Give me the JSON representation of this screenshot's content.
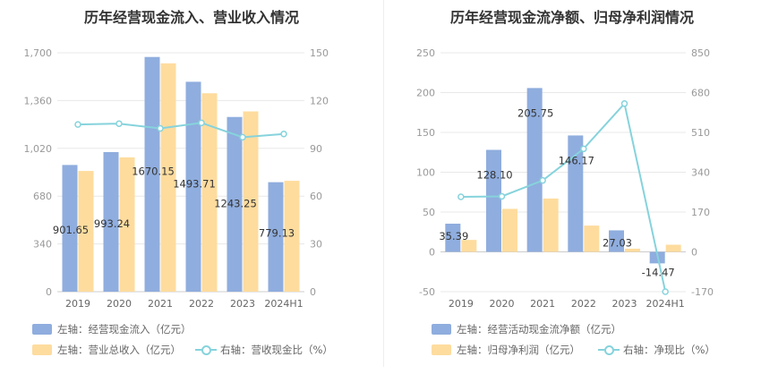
{
  "chart_data": [
    {
      "type": "bar",
      "title": "历年经营现金流入、营业收入情况",
      "categories": [
        "2019",
        "2020",
        "2021",
        "2022",
        "2023",
        "2024H1"
      ],
      "left_axis": {
        "ticks": [
          "0",
          "340",
          "680",
          "1,020",
          "1,360",
          "1,700"
        ],
        "ylim": [
          0,
          1700
        ]
      },
      "right_axis": {
        "ticks": [
          "0",
          "30",
          "60",
          "90",
          "120",
          "150"
        ],
        "ylim": [
          0,
          150
        ]
      },
      "series": [
        {
          "name": "左轴：经营现金流入（亿元）",
          "axis": "left",
          "type": "bar",
          "color": "#8fadde",
          "values": [
            901.65,
            993.24,
            1670.15,
            1493.71,
            1243.25,
            779.13
          ],
          "labels": [
            "901.65",
            "993.24",
            "1670.15",
            "1493.71",
            "1243.25",
            "779.13"
          ]
        },
        {
          "name": "左轴：营业总收入（亿元）",
          "axis": "left",
          "type": "bar",
          "color": "#fedc9e",
          "values": [
            859,
            956,
            1625,
            1412,
            1283,
            789
          ]
        },
        {
          "name": "右轴：营收现金比（%）",
          "axis": "right",
          "type": "line",
          "color": "#86d3dc",
          "values": [
            105,
            105.5,
            102.5,
            106,
            97,
            99
          ]
        }
      ],
      "legend_position": "bottom"
    },
    {
      "type": "bar",
      "title": "历年经营现金流净额、归母净利润情况",
      "categories": [
        "2019",
        "2020",
        "2021",
        "2022",
        "2023",
        "2024H1"
      ],
      "left_axis": {
        "ticks": [
          "-50",
          "0",
          "50",
          "100",
          "150",
          "200",
          "250"
        ],
        "ylim": [
          -50,
          250
        ]
      },
      "right_axis": {
        "ticks": [
          "-170",
          "0",
          "170",
          "340",
          "510",
          "680",
          "850"
        ],
        "ylim": [
          -170,
          850
        ]
      },
      "series": [
        {
          "name": "左轴：经营活动现金流净额（亿元）",
          "axis": "left",
          "type": "bar",
          "color": "#8fadde",
          "values": [
            35.39,
            128.1,
            205.75,
            146.17,
            27.03,
            -14.47
          ],
          "labels": [
            "35.39",
            "128.10",
            "205.75",
            "146.17",
            "27.03",
            "-14.47"
          ]
        },
        {
          "name": "左轴：归母净利润（亿元）",
          "axis": "left",
          "type": "bar",
          "color": "#fedc9e",
          "values": [
            15,
            54,
            67,
            33,
            4,
            9
          ]
        },
        {
          "name": "右轴：净现比（%）",
          "axis": "right",
          "type": "line",
          "color": "#86d3dc",
          "values": [
            235,
            237,
            305,
            440,
            633,
            -170
          ]
        }
      ],
      "legend_position": "bottom"
    }
  ]
}
